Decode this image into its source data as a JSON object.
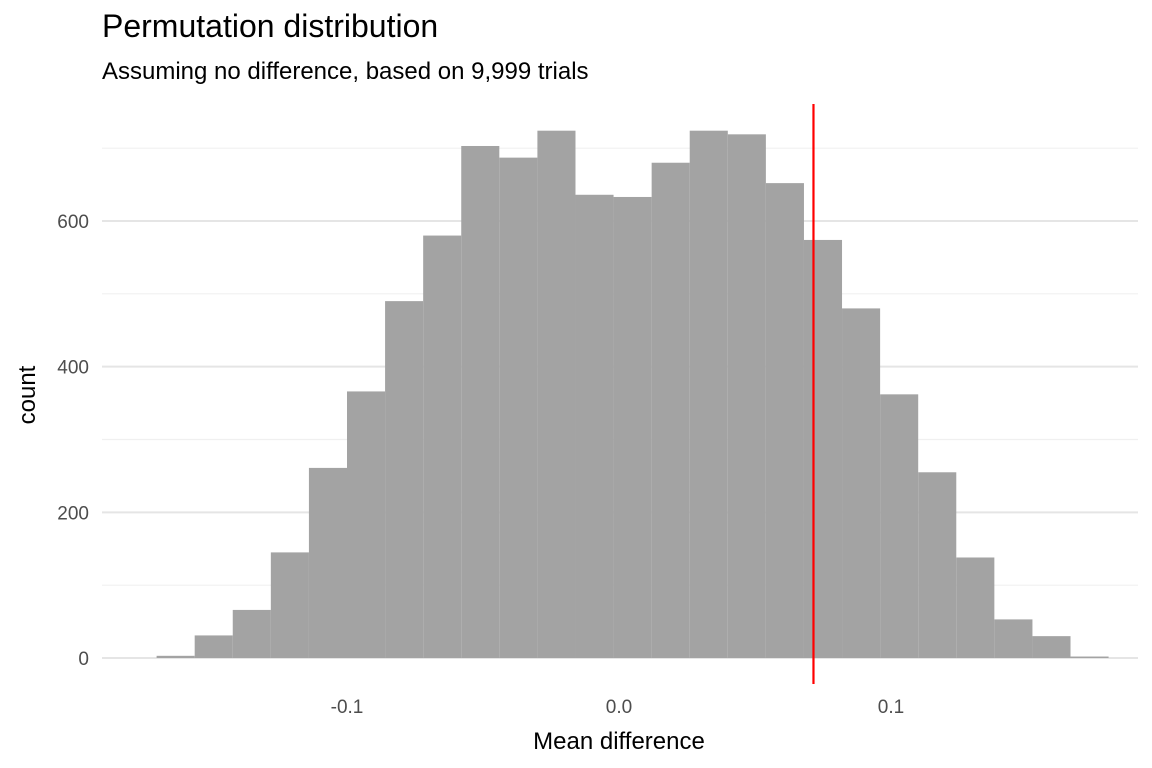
{
  "chart_data": {
    "type": "bar",
    "title": "Permutation distribution",
    "subtitle": "Assuming no difference, based on 9,999 trials",
    "xlabel": "Mean difference",
    "ylabel": "count",
    "bin_width": 0.014,
    "bin_centers": [
      -0.163,
      -0.149,
      -0.135,
      -0.121,
      -0.107,
      -0.093,
      -0.079,
      -0.065,
      -0.051,
      -0.037,
      -0.023,
      -0.009,
      0.005,
      0.019,
      0.033,
      0.047,
      0.061,
      0.075,
      0.089,
      0.103,
      0.117,
      0.131,
      0.145,
      0.159,
      0.173
    ],
    "counts": [
      3,
      31,
      66,
      145,
      261,
      366,
      490,
      580,
      703,
      687,
      724,
      636,
      633,
      680,
      724,
      719,
      652,
      574,
      480,
      362,
      255,
      138,
      53,
      30,
      2
    ],
    "observed_difference": 0.0715,
    "xlim": [
      -0.19,
      0.19
    ],
    "ylim": [
      0,
      760
    ],
    "x_ticks": [
      -0.1,
      0.0,
      0.1
    ],
    "x_tick_labels": [
      "-0.1",
      "0.0",
      "0.1"
    ],
    "y_ticks": [
      0,
      200,
      400,
      600
    ],
    "y_tick_labels": [
      "0",
      "200",
      "400",
      "600"
    ],
    "grid": true,
    "bar_color": "#a3a3a3",
    "line_color": "#ff0000",
    "grid_major_color": "#e5e5e5",
    "grid_minor_color": "#f0f0f0"
  }
}
